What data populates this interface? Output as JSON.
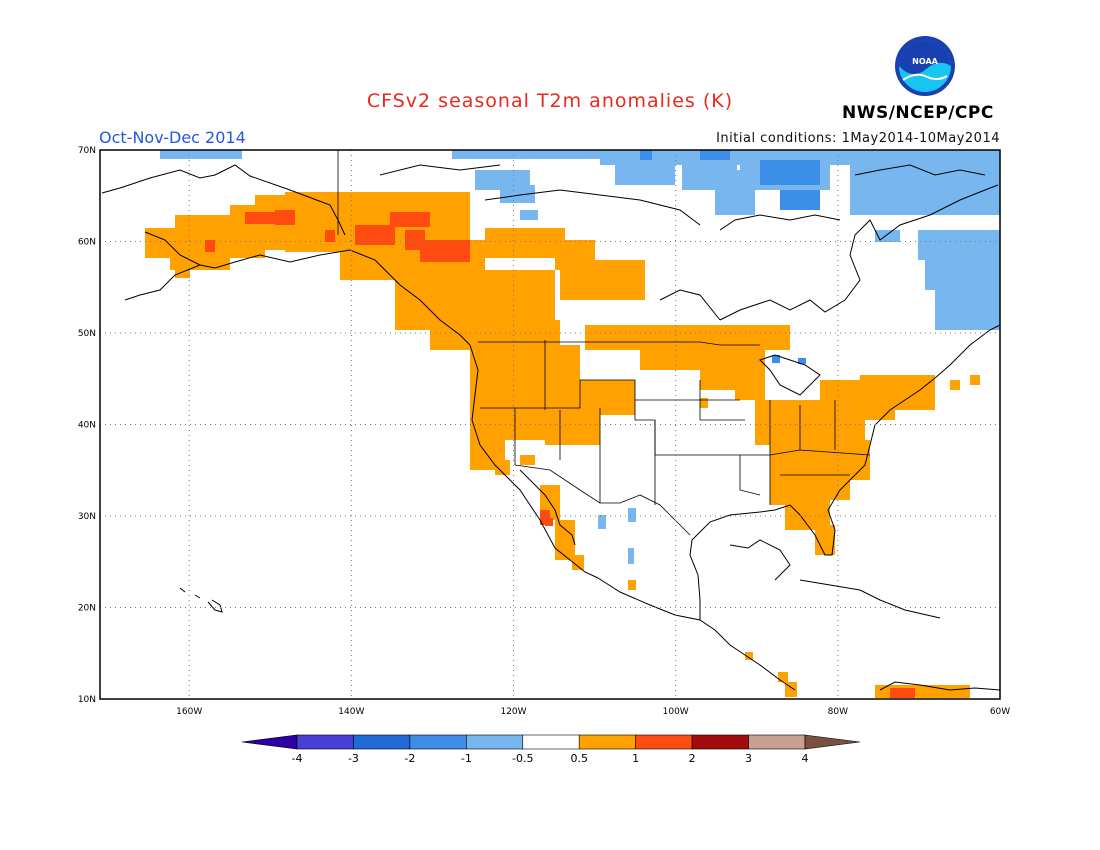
{
  "title": "CFSv2 seasonal T2m anomalies (K)",
  "period": "Oct-Nov-Dec 2014",
  "initial_conditions": "Initial conditions: 1May2014-10May2014",
  "agency": "NWS/NCEP/CPC",
  "logo_text": "NOAA",
  "map": {
    "lat_labels": [
      "70N",
      "60N",
      "50N",
      "40N",
      "30N",
      "20N",
      "10N"
    ],
    "lon_labels": [
      "160W",
      "140W",
      "120W",
      "100W",
      "80W",
      "60W"
    ],
    "lon_range": [
      -171,
      -60
    ],
    "lat_range": [
      10,
      70
    ]
  },
  "colorbar": {
    "labels": [
      "-4",
      "-3",
      "-2",
      "-1",
      "-0.5",
      "0.5",
      "1",
      "2",
      "3",
      "4"
    ],
    "colors": [
      "#2c00a6",
      "#4a3fd4",
      "#1f6ad6",
      "#3c8ee8",
      "#78b6f0",
      "#ffffff",
      "#ffa100",
      "#ff4b10",
      "#a30c0c",
      "#c9a090",
      "#7a5040"
    ]
  },
  "anomaly_regions": [
    {
      "name": "Alaska",
      "category": "0.5 to 1"
    },
    {
      "name": "Western Canada",
      "category": "0.5 to 1"
    },
    {
      "name": "Yukon / British Columbia interior",
      "category": "1 to 2"
    },
    {
      "name": "Western United States",
      "category": "0.5 to 1"
    },
    {
      "name": "Eastern United States",
      "category": "0.5 to 1"
    },
    {
      "name": "Northern Plains / Great Lakes",
      "category": "0.5 to 1"
    },
    {
      "name": "Baja California",
      "category": "1 to 2"
    },
    {
      "name": "Canadian Arctic",
      "category": "-1 to -0.5"
    },
    {
      "name": "Labrador / Quebec",
      "category": "-1 to -0.5"
    },
    {
      "name": "Northern South America",
      "category": "1 to 2"
    }
  ],
  "colors": {
    "title": "#e8291c",
    "period": "#2458e0",
    "warm": "#ffa100",
    "hot": "#ff4b10",
    "cool": "#78b6f0",
    "cold": "#3c8ee8"
  }
}
